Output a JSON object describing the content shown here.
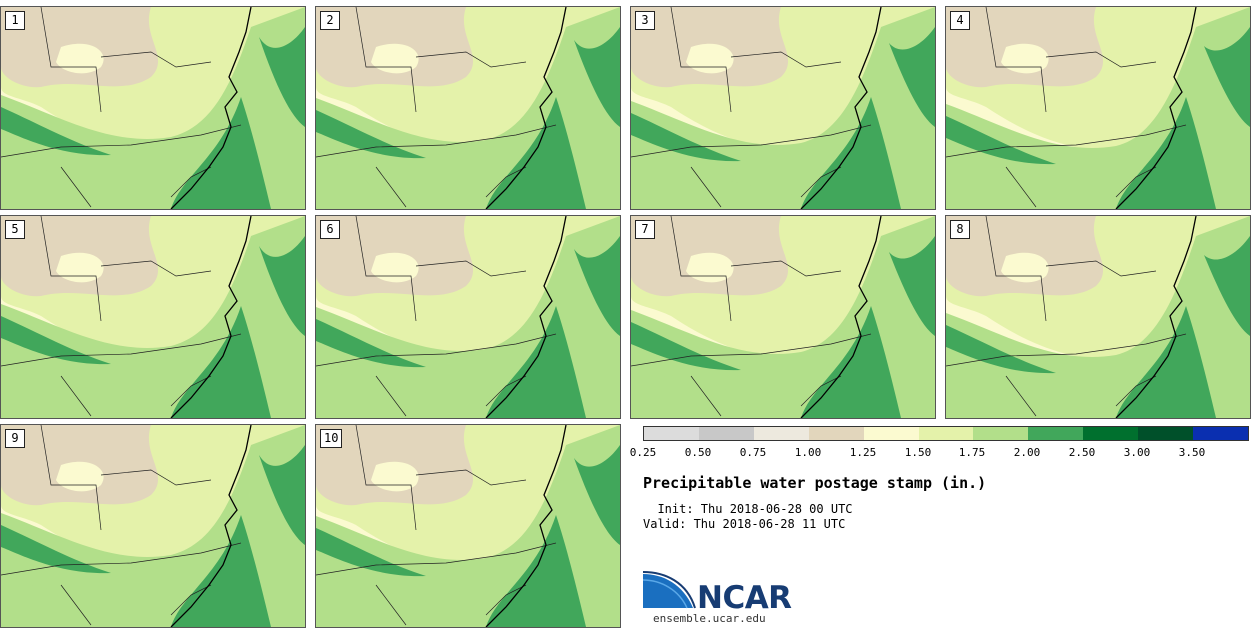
{
  "stamps": [
    {
      "number": "1"
    },
    {
      "number": "2"
    },
    {
      "number": "3"
    },
    {
      "number": "4"
    },
    {
      "number": "5"
    },
    {
      "number": "6"
    },
    {
      "number": "7"
    },
    {
      "number": "8"
    },
    {
      "number": "9"
    },
    {
      "number": "10"
    }
  ],
  "colorbar": {
    "colors": [
      "#dcdcdc",
      "#c8c8c8",
      "#ede9de",
      "#e2d6bc",
      "#fbfad0",
      "#e4f2aa",
      "#b2df8a",
      "#41a75b",
      "#00702e",
      "#00502a",
      "#0a2fb0"
    ],
    "tick_labels": [
      "0.25",
      "0.50",
      "0.75",
      "1.00",
      "1.25",
      "1.50",
      "1.75",
      "2.00",
      "2.50",
      "3.00",
      "3.50"
    ]
  },
  "title": "Precipitable water postage stamp (in.)",
  "init_line": "  Init: Thu 2018-06-28 00 UTC",
  "valid_line": "Valid: Thu 2018-06-28 11 UTC",
  "logo": {
    "text": "NCAR",
    "url": "ensemble.ucar.edu"
  }
}
